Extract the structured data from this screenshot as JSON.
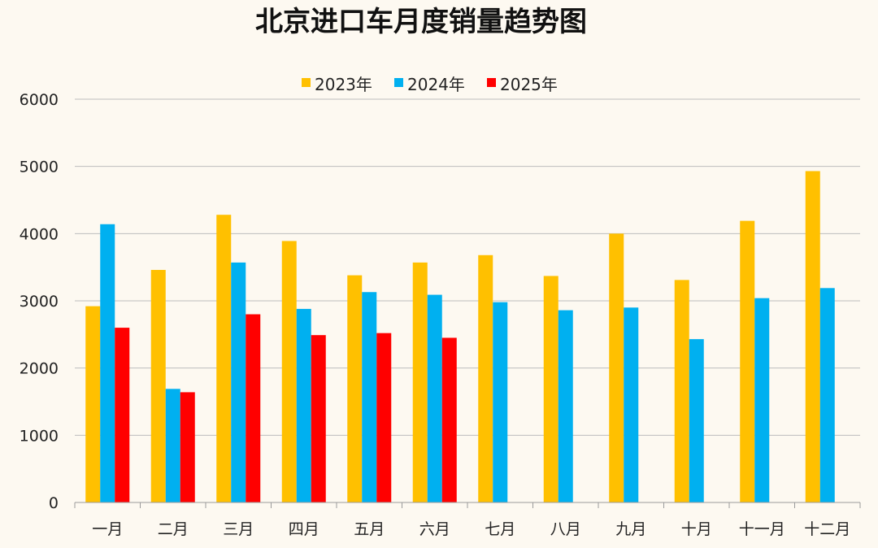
{
  "chart_data": {
    "type": "bar",
    "title": "北京进口车月度销量趋势图",
    "xlabel": "",
    "ylabel": "",
    "ylim": [
      0,
      6000
    ],
    "yticks": [
      0,
      1000,
      2000,
      3000,
      4000,
      5000,
      6000
    ],
    "grid": true,
    "legend_position": "top-center",
    "categories": [
      "一月",
      "二月",
      "三月",
      "四月",
      "五月",
      "六月",
      "七月",
      "八月",
      "九月",
      "十月",
      "十一月",
      "十二月"
    ],
    "series": [
      {
        "name": "2023年",
        "color": "#ffc000",
        "values": [
          2920,
          3460,
          4280,
          3890,
          3380,
          3570,
          3680,
          3370,
          4000,
          3310,
          4190,
          4930
        ]
      },
      {
        "name": "2024年",
        "color": "#00b0f0",
        "values": [
          4140,
          1690,
          3570,
          2880,
          3130,
          3090,
          2980,
          2860,
          2900,
          2430,
          3040,
          3190
        ]
      },
      {
        "name": "2025年",
        "color": "#ff0000",
        "values": [
          2600,
          1640,
          2800,
          2490,
          2520,
          2450,
          null,
          null,
          null,
          null,
          null,
          null
        ]
      }
    ]
  }
}
